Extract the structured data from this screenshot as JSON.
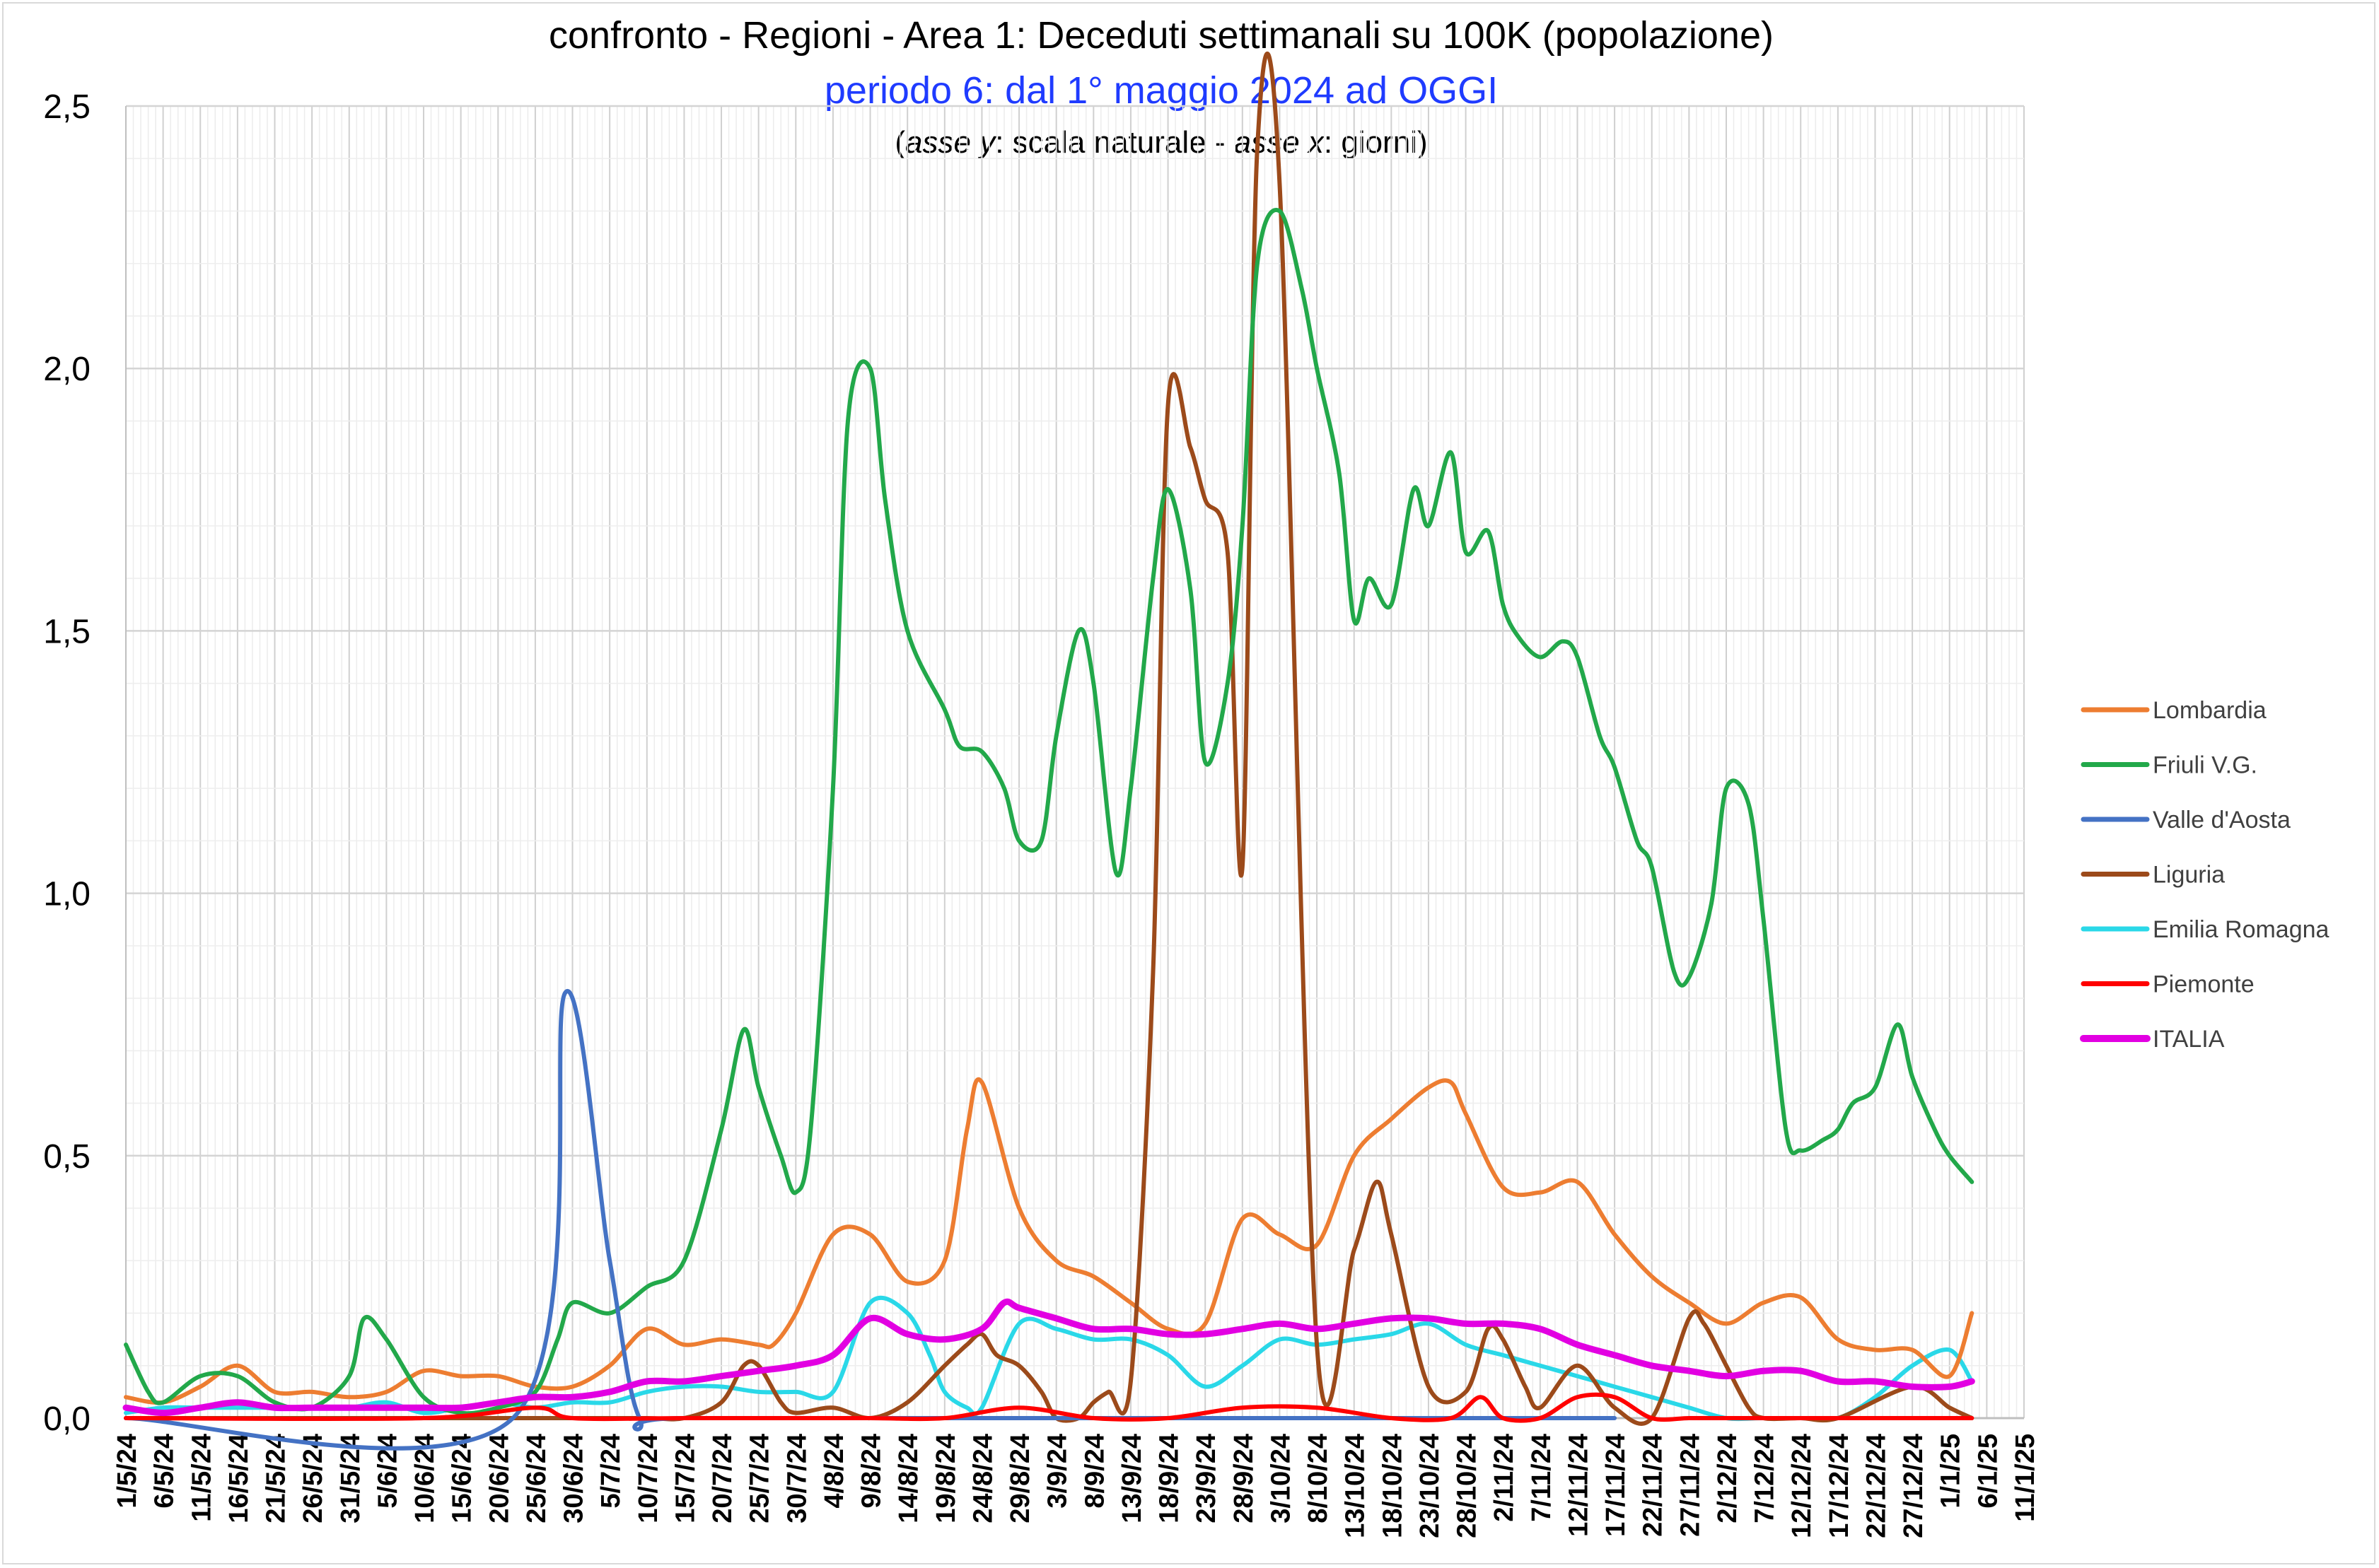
{
  "chart_data": {
    "type": "line",
    "title": "confronto - Regioni - Area 1: Deceduti settimanali su 100K (popolazione)",
    "subtitle": "periodo 6: dal 1° maggio 2024 ad OGGI",
    "axis_note": {
      "open": "(",
      "y_italic": "asse y",
      "mid": ": scala naturale - ",
      "x_italic": "asse x",
      "end": ":  giorni)"
    },
    "ylim": [
      0,
      2.5
    ],
    "yticks": [
      "0,0",
      "0,5",
      "1,0",
      "1,5",
      "2,0",
      "2,5"
    ],
    "xlim": [
      0,
      255
    ],
    "xticks": [
      "1/5/24",
      "6/5/24",
      "11/5/24",
      "16/5/24",
      "21/5/24",
      "26/5/24",
      "31/5/24",
      "5/6/24",
      "10/6/24",
      "15/6/24",
      "20/6/24",
      "25/6/24",
      "30/6/24",
      "5/7/24",
      "10/7/24",
      "15/7/24",
      "20/7/24",
      "25/7/24",
      "30/7/24",
      "4/8/24",
      "9/8/24",
      "14/8/24",
      "19/8/24",
      "24/8/24",
      "29/8/24",
      "3/9/24",
      "8/9/24",
      "13/9/24",
      "18/9/24",
      "23/9/24",
      "28/9/24",
      "3/10/24",
      "8/10/24",
      "13/10/24",
      "18/10/24",
      "23/10/24",
      "28/10/24",
      "2/11/24",
      "7/11/24",
      "12/11/24",
      "17/11/24",
      "22/11/24",
      "27/11/24",
      "2/12/24",
      "7/12/24",
      "12/12/24",
      "17/12/24",
      "22/12/24",
      "27/12/24",
      "1/1/25",
      "6/1/25",
      "11/1/25"
    ],
    "grid": true,
    "legend_position": "right",
    "series": [
      {
        "name": "Lombardia",
        "color": "#ed7d31",
        "x": [
          0,
          5,
          10,
          15,
          20,
          25,
          30,
          35,
          40,
          45,
          50,
          55,
          60,
          65,
          70,
          75,
          80,
          85,
          87,
          90,
          95,
          100,
          105,
          110,
          113,
          115,
          120,
          125,
          130,
          135,
          140,
          145,
          150,
          155,
          160,
          165,
          170,
          175,
          178,
          180,
          185,
          190,
          195,
          200,
          205,
          210,
          215,
          220,
          225,
          230,
          235,
          240,
          245,
          248
        ],
        "y": [
          0.04,
          0.03,
          0.06,
          0.1,
          0.05,
          0.05,
          0.04,
          0.05,
          0.09,
          0.08,
          0.08,
          0.06,
          0.06,
          0.1,
          0.17,
          0.14,
          0.15,
          0.14,
          0.14,
          0.2,
          0.35,
          0.35,
          0.26,
          0.3,
          0.55,
          0.64,
          0.4,
          0.3,
          0.27,
          0.22,
          0.17,
          0.18,
          0.38,
          0.35,
          0.33,
          0.5,
          0.57,
          0.63,
          0.64,
          0.58,
          0.44,
          0.43,
          0.45,
          0.35,
          0.27,
          0.22,
          0.18,
          0.22,
          0.23,
          0.15,
          0.13,
          0.13,
          0.08,
          0.2
        ]
      },
      {
        "name": "Friuli V.G.",
        "color": "#22a84a",
        "x": [
          0,
          3,
          5,
          10,
          15,
          20,
          25,
          30,
          32,
          35,
          40,
          45,
          50,
          55,
          58,
          60,
          65,
          70,
          75,
          80,
          83,
          85,
          88,
          90,
          92,
          95,
          97,
          100,
          102,
          105,
          110,
          112,
          115,
          118,
          120,
          123,
          125,
          128,
          130,
          133,
          135,
          138,
          140,
          143,
          145,
          148,
          150,
          152,
          155,
          158,
          160,
          163,
          165,
          167,
          170,
          173,
          175,
          178,
          180,
          183,
          185,
          187,
          190,
          193,
          195,
          198,
          200,
          203,
          205,
          208,
          210,
          213,
          215,
          218,
          220,
          223,
          225,
          228,
          230,
          232,
          235,
          238,
          240,
          243,
          245,
          248
        ],
        "y": [
          0.14,
          0.05,
          0.03,
          0.08,
          0.08,
          0.03,
          0.02,
          0.08,
          0.19,
          0.15,
          0.04,
          0.01,
          0.02,
          0.05,
          0.15,
          0.22,
          0.2,
          0.25,
          0.3,
          0.55,
          0.74,
          0.63,
          0.5,
          0.43,
          0.55,
          1.2,
          1.9,
          2.0,
          1.75,
          1.5,
          1.35,
          1.28,
          1.27,
          1.2,
          1.1,
          1.1,
          1.3,
          1.5,
          1.4,
          1.04,
          1.2,
          1.6,
          1.77,
          1.58,
          1.25,
          1.4,
          1.7,
          2.2,
          2.3,
          2.15,
          2.0,
          1.8,
          1.52,
          1.6,
          1.55,
          1.77,
          1.7,
          1.84,
          1.65,
          1.69,
          1.55,
          1.49,
          1.45,
          1.48,
          1.45,
          1.3,
          1.24,
          1.1,
          1.05,
          0.85,
          0.84,
          0.98,
          1.2,
          1.17,
          0.95,
          0.55,
          0.51,
          0.53,
          0.55,
          0.6,
          0.63,
          0.75,
          0.65,
          0.55,
          0.5,
          0.45
        ]
      },
      {
        "name": "Valle d'Aosta",
        "color": "#4472c4",
        "x": [
          0,
          52,
          59,
          65,
          69,
          75,
          140,
          150,
          190,
          200
        ],
        "y": [
          0,
          0,
          0.81,
          0.3,
          0,
          0,
          0,
          0,
          0,
          0
        ]
      },
      {
        "name": "Liguria",
        "color": "#9c4a1a",
        "x": [
          0,
          5,
          20,
          40,
          50,
          60,
          70,
          75,
          80,
          83,
          85,
          88,
          90,
          95,
          100,
          105,
          110,
          113,
          115,
          117,
          120,
          123,
          125,
          128,
          130,
          132,
          135,
          138,
          140,
          143,
          145,
          148,
          150,
          152,
          155,
          160,
          165,
          168,
          170,
          175,
          180,
          183,
          185,
          188,
          190,
          195,
          200,
          205,
          210,
          212,
          215,
          218,
          220,
          225,
          230,
          240,
          245,
          248
        ],
        "y": [
          0,
          0,
          0,
          0,
          0,
          0,
          0,
          0,
          0.03,
          0.1,
          0.1,
          0.03,
          0.01,
          0.02,
          0,
          0.03,
          0.1,
          0.14,
          0.16,
          0.12,
          0.1,
          0.05,
          0,
          0,
          0.03,
          0.05,
          0.07,
          0.85,
          1.93,
          1.85,
          1.75,
          1.65,
          1.05,
          2.42,
          2.35,
          0.14,
          0.32,
          0.45,
          0.35,
          0.06,
          0.05,
          0.17,
          0.15,
          0.06,
          0.02,
          0.1,
          0.02,
          0,
          0.19,
          0.18,
          0.1,
          0.02,
          0,
          0,
          0,
          0.06,
          0.02,
          0
        ]
      },
      {
        "name": "Emilia Romagna",
        "color": "#2ad8e8",
        "x": [
          0,
          5,
          10,
          15,
          20,
          25,
          30,
          35,
          40,
          45,
          50,
          55,
          60,
          65,
          70,
          75,
          80,
          85,
          90,
          95,
          100,
          105,
          108,
          110,
          113,
          115,
          120,
          125,
          130,
          135,
          140,
          145,
          150,
          155,
          160,
          165,
          170,
          175,
          180,
          185,
          190,
          195,
          200,
          205,
          210,
          215,
          220,
          225,
          230,
          235,
          240,
          245,
          248
        ],
        "y": [
          0.01,
          0.02,
          0.02,
          0.02,
          0.02,
          0.02,
          0.02,
          0.03,
          0.01,
          0.02,
          0.03,
          0.02,
          0.03,
          0.03,
          0.05,
          0.06,
          0.06,
          0.05,
          0.05,
          0.05,
          0.22,
          0.2,
          0.12,
          0.05,
          0.02,
          0.02,
          0.18,
          0.17,
          0.15,
          0.15,
          0.12,
          0.06,
          0.1,
          0.15,
          0.14,
          0.15,
          0.16,
          0.18,
          0.14,
          0.12,
          0.1,
          0.08,
          0.06,
          0.04,
          0.02,
          0,
          0,
          0,
          0,
          0.04,
          0.1,
          0.13,
          0.07
        ]
      },
      {
        "name": "Piemonte",
        "color": "#ff0000",
        "x": [
          0,
          40,
          55,
          60,
          75,
          90,
          100,
          110,
          120,
          130,
          140,
          150,
          160,
          170,
          178,
          182,
          185,
          190,
          195,
          200,
          205,
          210,
          215,
          220,
          225,
          240,
          248
        ],
        "y": [
          0,
          0,
          0.02,
          0,
          0,
          0,
          0,
          0,
          0.02,
          0,
          0,
          0.02,
          0.02,
          0,
          0,
          0.04,
          0,
          0,
          0.04,
          0.04,
          0,
          0,
          0,
          0,
          0,
          0,
          0
        ]
      },
      {
        "name": "ITALIA",
        "color": "#e200e2",
        "x": [
          0,
          5,
          10,
          15,
          20,
          25,
          30,
          35,
          40,
          45,
          50,
          55,
          60,
          65,
          70,
          75,
          80,
          85,
          90,
          95,
          100,
          105,
          110,
          115,
          118,
          120,
          125,
          130,
          135,
          140,
          145,
          150,
          155,
          160,
          165,
          170,
          175,
          180,
          185,
          190,
          195,
          200,
          205,
          210,
          215,
          220,
          225,
          230,
          235,
          240,
          245,
          248
        ],
        "y": [
          0.02,
          0.01,
          0.02,
          0.03,
          0.02,
          0.02,
          0.02,
          0.02,
          0.02,
          0.02,
          0.03,
          0.04,
          0.04,
          0.05,
          0.07,
          0.07,
          0.08,
          0.09,
          0.1,
          0.12,
          0.19,
          0.16,
          0.15,
          0.17,
          0.22,
          0.21,
          0.19,
          0.17,
          0.17,
          0.16,
          0.16,
          0.17,
          0.18,
          0.17,
          0.18,
          0.19,
          0.19,
          0.18,
          0.18,
          0.17,
          0.14,
          0.12,
          0.1,
          0.09,
          0.08,
          0.09,
          0.09,
          0.07,
          0.07,
          0.06,
          0.06,
          0.07
        ]
      }
    ]
  }
}
